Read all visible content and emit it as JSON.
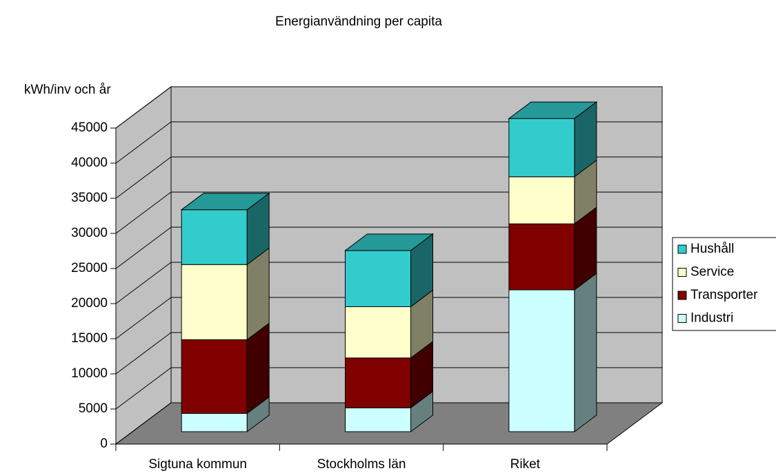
{
  "chart_data": {
    "type": "bar3d_stacked",
    "title": "Energianvändning per capita",
    "y_label": "kWh/inv och år",
    "categories": [
      "Sigtuna kommun",
      "Stockholms län",
      "Riket"
    ],
    "series": [
      {
        "name": "Industri",
        "color": "#ccffff",
        "values": [
          2600,
          3400,
          20200
        ]
      },
      {
        "name": "Transporter",
        "color": "#800000",
        "values": [
          10500,
          7100,
          9400
        ]
      },
      {
        "name": "Service",
        "color": "#ffffcc",
        "values": [
          10700,
          7300,
          6700
        ]
      },
      {
        "name": "Hushåll",
        "color": "#33cccc",
        "values": [
          7800,
          8000,
          8300
        ]
      }
    ],
    "ylim": [
      0,
      45000
    ],
    "yticks": [
      0,
      5000,
      10000,
      15000,
      20000,
      25000,
      30000,
      35000,
      40000,
      45000
    ],
    "grid": true,
    "legend": "right"
  }
}
